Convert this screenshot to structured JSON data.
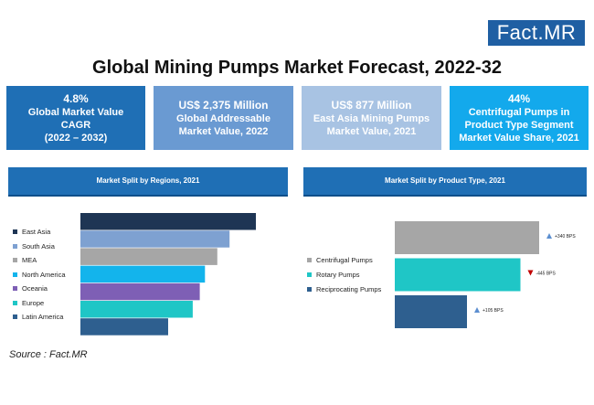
{
  "brand": {
    "name_a": "Fact.",
    "name_b": "MR"
  },
  "title": "Global Mining Pumps Market Forecast, 2022-32",
  "kpis": [
    {
      "value": "4.8%",
      "label": "Global Market Value\nCAGR\n(2022 – 2032)",
      "color": "#1f6fb5"
    },
    {
      "value": "US$ 2,375 Million",
      "label": "Global Addressable\nMarket Value, 2022",
      "color": "#6a9ad2"
    },
    {
      "value": "US$ 877 Million",
      "label": "East Asia Mining Pumps\nMarket Value, 2021",
      "color": "#a8c3e3"
    },
    {
      "value": "44%",
      "label": "Centrifugal Pumps in\nProduct Type Segment\nMarket Value Share, 2021",
      "color": "#13a9ec"
    }
  ],
  "panels": {
    "regions_title": "Market Split by Regions, 2021",
    "product_title": "Market Split by Product Type, 2021"
  },
  "source": "Source : Fact.MR",
  "chart_data": [
    {
      "type": "bar",
      "orientation": "horizontal",
      "title": "Market Split by Regions, 2021",
      "categories": [
        "East Asia",
        "South Asia",
        "MEA",
        "North America",
        "Oceania",
        "Europe",
        "Latin America"
      ],
      "values": [
        100,
        85,
        78,
        71,
        68,
        64,
        50
      ],
      "colors": [
        "#1e3554",
        "#7ea1d1",
        "#a6a6a6",
        "#13b4ec",
        "#7e5fb5",
        "#1fc6c6",
        "#2e5f8f"
      ],
      "grid": false,
      "legend": "left"
    },
    {
      "type": "bar",
      "orientation": "horizontal",
      "title": "Market Split by Product Type, 2021",
      "categories": [
        "Centrifugal Pumps",
        "Rotary Pumps",
        "Reciprocating Pumps"
      ],
      "values": [
        100,
        87,
        50
      ],
      "colors": [
        "#a6a6a6",
        "#1fc6c6",
        "#2e5f8f"
      ],
      "annotations": [
        "+340 BPS",
        "-445 BPS",
        "+105 BPS"
      ],
      "annotation_directions": [
        "up",
        "down",
        "up"
      ],
      "annotation_colors": [
        "#5b8ed0",
        "#c00000",
        "#5b8ed0"
      ],
      "grid": false,
      "legend": "left"
    }
  ]
}
